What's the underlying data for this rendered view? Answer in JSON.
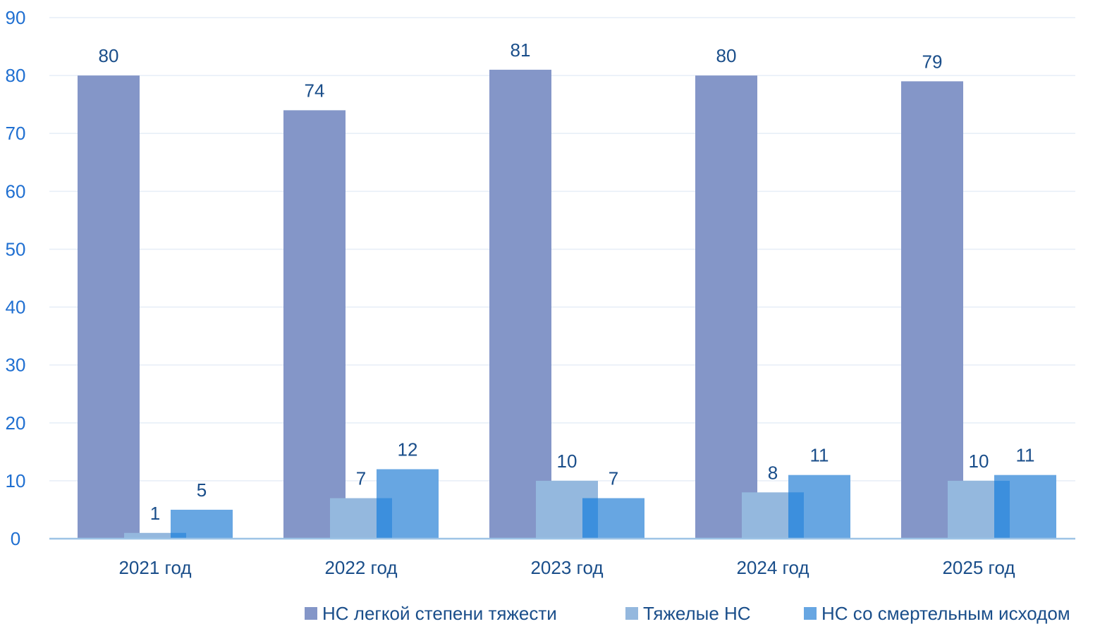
{
  "chart_data": {
    "type": "bar",
    "categories": [
      "2021  год",
      "2022 год",
      "2023 год",
      "2024 год",
      "2025 год"
    ],
    "series": [
      {
        "name": "НС легкой степени тяжести",
        "values": [
          80,
          74,
          81,
          80,
          79
        ],
        "color": "#8496c8"
      },
      {
        "name": "Тяжелые НС",
        "values": [
          1,
          7,
          10,
          8,
          10
        ],
        "color": "#94b8de"
      },
      {
        "name": "НС со смертельным исходом",
        "values": [
          5,
          12,
          7,
          11,
          11
        ],
        "color": "#67a6e2"
      }
    ],
    "ylim": [
      0,
      90
    ],
    "yticks": [
      0,
      10,
      20,
      30,
      40,
      50,
      60,
      70,
      80,
      90
    ],
    "grid": true,
    "legend_position": "bottom-right",
    "colors": {
      "text": "#1a4e8a",
      "axis_text": "#1f6fd1",
      "gridline": "#e6eef7",
      "axis_line": "#9dc3e6",
      "overlap": "#3c8fdd"
    }
  }
}
